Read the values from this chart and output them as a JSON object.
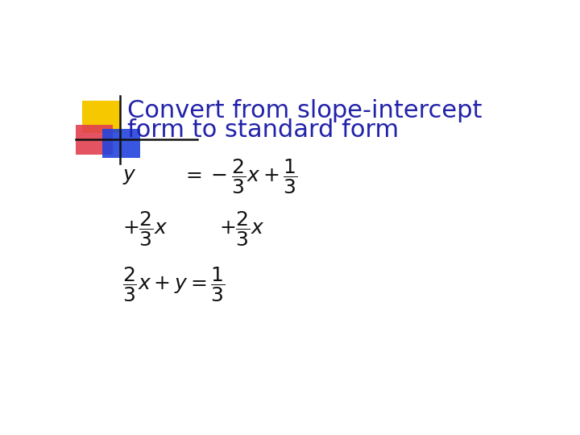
{
  "title_line1": "Convert from slope-intercept",
  "title_line2": "form to standard form",
  "title_color": "#2222aa",
  "title_fontsize": 22,
  "bg_color": "#ffffff",
  "math_color": "#111111",
  "math_fontsize": 18,
  "deco_yellow": "#f5c800",
  "deco_red": "#e04050",
  "deco_blue": "#2244dd",
  "deco_line_color": "#111111"
}
